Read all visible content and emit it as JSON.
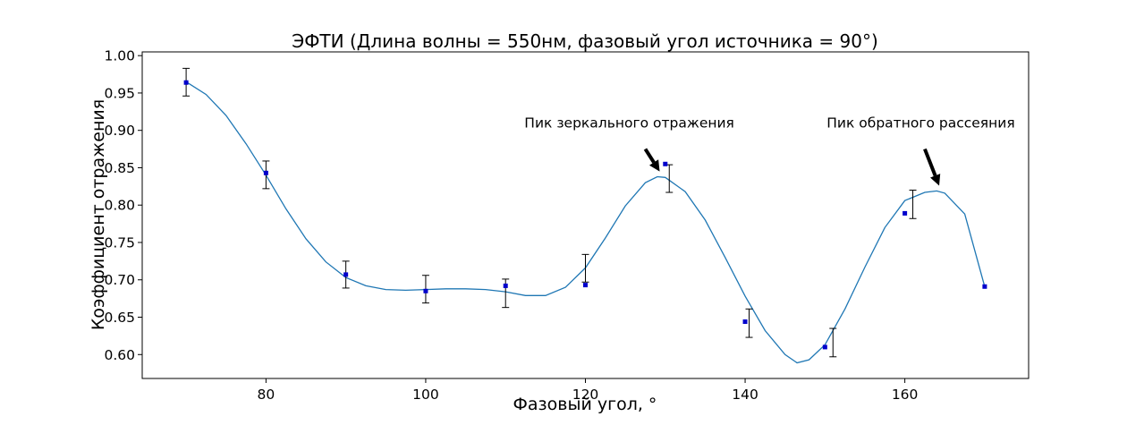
{
  "chart_data": {
    "type": "scatter",
    "title": "ЭФТИ (Длина волны = 550нм, фазовый угол источника = 90°)",
    "xlabel": "Фазовый угол, °",
    "ylabel": "Коэффициент отражения",
    "xlim": [
      64.5,
      175.5
    ],
    "ylim": [
      0.568,
      1.005
    ],
    "xticks": [
      80,
      100,
      120,
      140,
      160
    ],
    "yticks": [
      0.6,
      0.65,
      0.7,
      0.75,
      0.8,
      0.85,
      0.9,
      0.95,
      1.0
    ],
    "xtick_labels": [
      "80",
      "100",
      "120",
      "140",
      "160"
    ],
    "ytick_labels": [
      "0.60",
      "0.65",
      "0.70",
      "0.75",
      "0.80",
      "0.85",
      "0.90",
      "0.95",
      "1.00"
    ],
    "grid": false,
    "colors": {
      "points": "#0000cc",
      "curve": "#1f77b4",
      "errorbars": "#000000"
    },
    "series": [
      {
        "type": "scatter_errorbar",
        "x": [
          70,
          80,
          90,
          100,
          110,
          120,
          130,
          140,
          150,
          160,
          170
        ],
        "y": [
          0.964,
          0.843,
          0.707,
          0.685,
          0.692,
          0.693,
          0.855,
          0.644,
          0.61,
          0.789,
          0.691
        ],
        "err_x": [
          70,
          80,
          90,
          100,
          110,
          120,
          130.5,
          140.5,
          151,
          161,
          null
        ],
        "err_low": [
          0.946,
          0.822,
          0.689,
          0.669,
          0.663,
          0.697,
          0.817,
          0.623,
          0.597,
          0.782,
          null
        ],
        "err_high": [
          0.983,
          0.859,
          0.725,
          0.706,
          0.701,
          0.734,
          0.854,
          0.661,
          0.635,
          0.82,
          null
        ]
      },
      {
        "type": "line",
        "x": [
          70,
          72.5,
          75,
          77.5,
          80,
          82.5,
          85,
          87.5,
          90,
          92.5,
          95,
          97.5,
          100,
          102.5,
          105,
          107.5,
          110,
          112.5,
          115,
          117.5,
          120,
          122.5,
          125,
          127.5,
          129,
          130,
          132.5,
          135,
          137.5,
          140,
          142.5,
          145,
          146.5,
          148,
          150,
          152.5,
          155,
          157.5,
          160,
          162.5,
          164,
          165,
          167.5,
          170
        ],
        "y": [
          0.965,
          0.948,
          0.92,
          0.882,
          0.84,
          0.795,
          0.755,
          0.724,
          0.703,
          0.692,
          0.687,
          0.686,
          0.687,
          0.688,
          0.688,
          0.687,
          0.684,
          0.679,
          0.679,
          0.69,
          0.716,
          0.756,
          0.799,
          0.83,
          0.838,
          0.837,
          0.818,
          0.78,
          0.73,
          0.678,
          0.632,
          0.6,
          0.589,
          0.593,
          0.613,
          0.661,
          0.717,
          0.77,
          0.806,
          0.817,
          0.819,
          0.816,
          0.788,
          0.691
        ]
      }
    ],
    "annotations": [
      {
        "text": "Пик зеркального отражения",
        "text_x": 125.5,
        "text_y": 0.9,
        "arrow_from": [
          127.5,
          0.875
        ],
        "arrow_to": [
          129.3,
          0.845
        ]
      },
      {
        "text": "Пик обратного рассеяния",
        "text_x": 162,
        "text_y": 0.9,
        "arrow_from": [
          162.5,
          0.875
        ],
        "arrow_to": [
          164.3,
          0.826
        ]
      }
    ]
  }
}
